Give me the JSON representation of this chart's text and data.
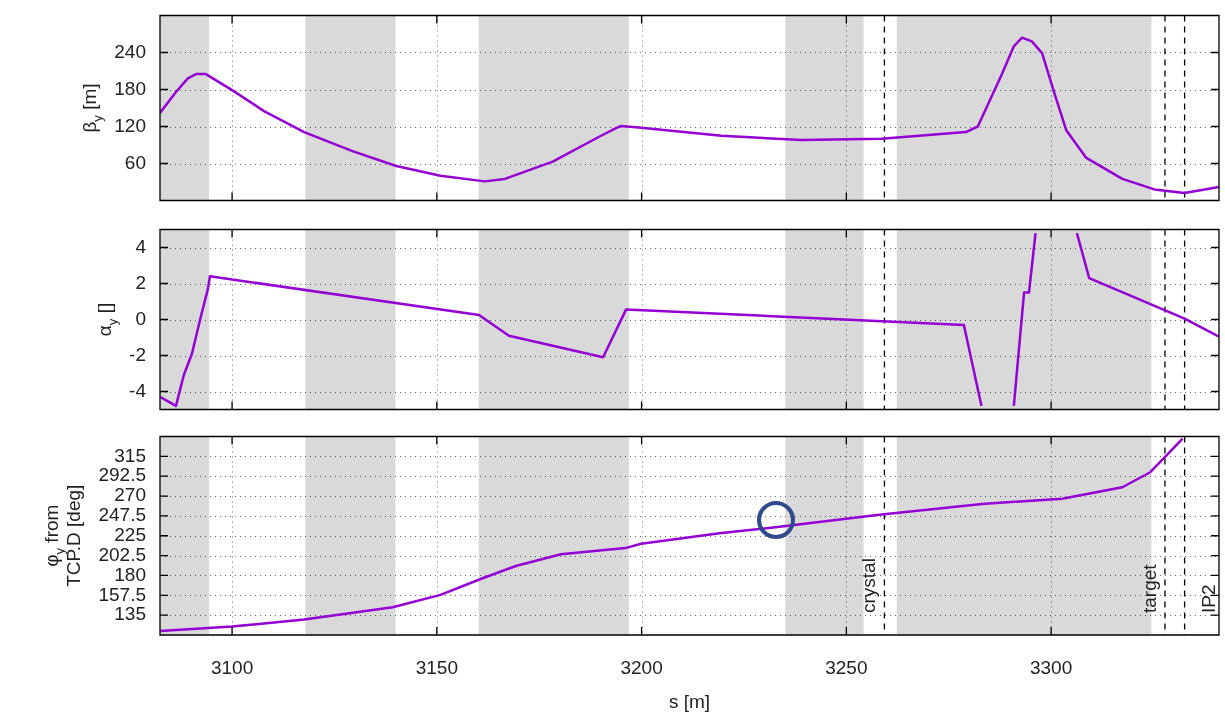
{
  "chart_data": [
    {
      "type": "line",
      "ylabel": "β$_{y}$ [m]",
      "x": [
        3082.4,
        3086.3,
        3089.2,
        3091.2,
        3093.6,
        3100,
        3107.8,
        3117.6,
        3129.4,
        3140.1,
        3150.9,
        3161.7,
        3166.6,
        3178.3,
        3190.1,
        3194,
        3195,
        3199.9,
        3219.5,
        3239,
        3258.6,
        3279.2,
        3282.1,
        3288,
        3290.9,
        3292.9,
        3295.3,
        3297.8,
        3300.7,
        3303.7,
        3308.6,
        3317.4,
        3325.2,
        3332.6,
        3341
      ],
      "series": [
        {
          "color": "#9400d3",
          "values": [
            142,
            176,
            198,
            205,
            205,
            179,
            145,
            111,
            80,
            56,
            40,
            31,
            35,
            63,
            105,
            118,
            121,
            118,
            105,
            98,
            100,
            111,
            120,
            205,
            250,
            264,
            258,
            239,
            176,
            114,
            69,
            35,
            18,
            12,
            22
          ]
        }
      ],
      "xlim": [
        3082.4,
        3341
      ],
      "xticks": [
        3100,
        3150,
        3200,
        3250,
        3300
      ],
      "ylim": [
        0,
        300
      ],
      "yticks": [
        60,
        120,
        180,
        240
      ],
      "grid": true,
      "marker": "none",
      "line_style": "solid",
      "tick_labels": "y",
      "bands": [
        {
          "axis": "x",
          "from": 3082.4,
          "to": 3094.4,
          "color": "#d9d9d9"
        },
        {
          "axis": "x",
          "from": 3117.9,
          "to": 3139.9,
          "color": "#d9d9d9"
        },
        {
          "axis": "x",
          "from": 3160.2,
          "to": 3196.9,
          "color": "#d9d9d9"
        },
        {
          "axis": "x",
          "from": 3235.1,
          "to": 3254.2,
          "color": "#d9d9d9"
        },
        {
          "axis": "x",
          "from": 3262.3,
          "to": 3324.5,
          "color": "#d9d9d9"
        }
      ],
      "ref_lines": [
        {
          "axis": "x",
          "value": 3259.3,
          "color": "#000000",
          "line_style": "dashed"
        },
        {
          "axis": "x",
          "value": 3327.8,
          "color": "#000000",
          "line_style": "dashed"
        },
        {
          "axis": "x",
          "value": 3332.6,
          "color": "#000000",
          "line_style": "dashed"
        }
      ]
    },
    {
      "type": "line",
      "ylabel": "α$_{y}$ []",
      "x": [
        3082.4,
        3086.3,
        3088.2,
        3090.2,
        3092.2,
        3094.1,
        3094.6,
        3160.3,
        3167.6,
        3190.6,
        3196.2,
        3278.7,
        3283,
        3287,
        3290.9,
        3293.4,
        3294.6,
        3296.2,
        3301,
        3306.3,
        3309.3,
        3332.6,
        3341
      ],
      "series": [
        {
          "color": "#9400d3",
          "values": [
            -4.3,
            -4.8,
            -3.1,
            -1.9,
            0,
            1.7,
            2.4,
            0.25,
            -0.9,
            -2.1,
            0.55,
            -0.3,
            -4.8,
            null,
            -4.8,
            1.5,
            1.5,
            4.8,
            null,
            4.8,
            2.3,
            0.05,
            -0.95
          ]
        }
      ],
      "xlim": [
        3082.4,
        3341
      ],
      "xticks": [
        3100,
        3150,
        3200,
        3250,
        3300
      ],
      "ylim": [
        -5,
        5
      ],
      "yticks": [
        -4,
        -2,
        0,
        2,
        4
      ],
      "grid": true,
      "marker": "none",
      "line_style": "solid",
      "tick_labels": "y",
      "bands": [
        {
          "axis": "x",
          "from": 3082.4,
          "to": 3094.4,
          "color": "#d9d9d9"
        },
        {
          "axis": "x",
          "from": 3117.9,
          "to": 3139.9,
          "color": "#d9d9d9"
        },
        {
          "axis": "x",
          "from": 3160.2,
          "to": 3196.9,
          "color": "#d9d9d9"
        },
        {
          "axis": "x",
          "from": 3235.1,
          "to": 3254.2,
          "color": "#d9d9d9"
        },
        {
          "axis": "x",
          "from": 3262.3,
          "to": 3324.5,
          "color": "#d9d9d9"
        }
      ],
      "ref_lines": [
        {
          "axis": "x",
          "value": 3259.3,
          "color": "#000000",
          "line_style": "dashed"
        },
        {
          "axis": "x",
          "value": 3327.8,
          "color": "#000000",
          "line_style": "dashed"
        },
        {
          "axis": "x",
          "value": 3332.6,
          "color": "#000000",
          "line_style": "dashed"
        }
      ]
    },
    {
      "type": "line",
      "ylabel": "φ$_{y}$ from\nTCP.D [deg]",
      "xlabel": "s [m]",
      "x": [
        3082.4,
        3100,
        3117.6,
        3139.2,
        3150.9,
        3160.7,
        3169.5,
        3180.3,
        3196,
        3199.9,
        3219.5,
        3233.2,
        3258.6,
        3283.1,
        3302.7,
        3317.4,
        3324.2,
        3328.2,
        3332.1
      ],
      "series": [
        {
          "color": "#9400d3",
          "values": [
            117,
            122,
            130,
            144,
            158,
            176,
            191,
            204,
            211,
            216,
            228,
            235,
            249,
            261,
            267,
            280,
            297,
            316,
            335
          ]
        }
      ],
      "xlim": [
        3082.4,
        3341
      ],
      "xticks": [
        3100,
        3150,
        3200,
        3250,
        3300
      ],
      "ylim": [
        112.5,
        337.5
      ],
      "yticks": [
        135,
        157.5,
        180,
        202.5,
        225,
        247.5,
        270,
        292.5,
        315
      ],
      "grid": true,
      "marker": "none",
      "line_style": "solid",
      "bands": [
        {
          "axis": "x",
          "from": 3082.4,
          "to": 3094.4,
          "color": "#d9d9d9"
        },
        {
          "axis": "x",
          "from": 3117.9,
          "to": 3139.9,
          "color": "#d9d9d9"
        },
        {
          "axis": "x",
          "from": 3160.2,
          "to": 3196.9,
          "color": "#d9d9d9"
        },
        {
          "axis": "x",
          "from": 3235.1,
          "to": 3254.2,
          "color": "#d9d9d9"
        },
        {
          "axis": "x",
          "from": 3262.3,
          "to": 3324.5,
          "color": "#d9d9d9"
        }
      ],
      "ref_lines": [
        {
          "axis": "x",
          "value": 3259.3,
          "label": "crystal",
          "color": "#000000",
          "line_style": "dashed"
        },
        {
          "axis": "x",
          "value": 3327.8,
          "label": "target",
          "color": "#000000",
          "line_style": "dashed"
        },
        {
          "axis": "x",
          "value": 3332.6,
          "label": "IP2",
          "color": "#000000",
          "line_style": "dashed"
        }
      ]
    }
  ]
}
